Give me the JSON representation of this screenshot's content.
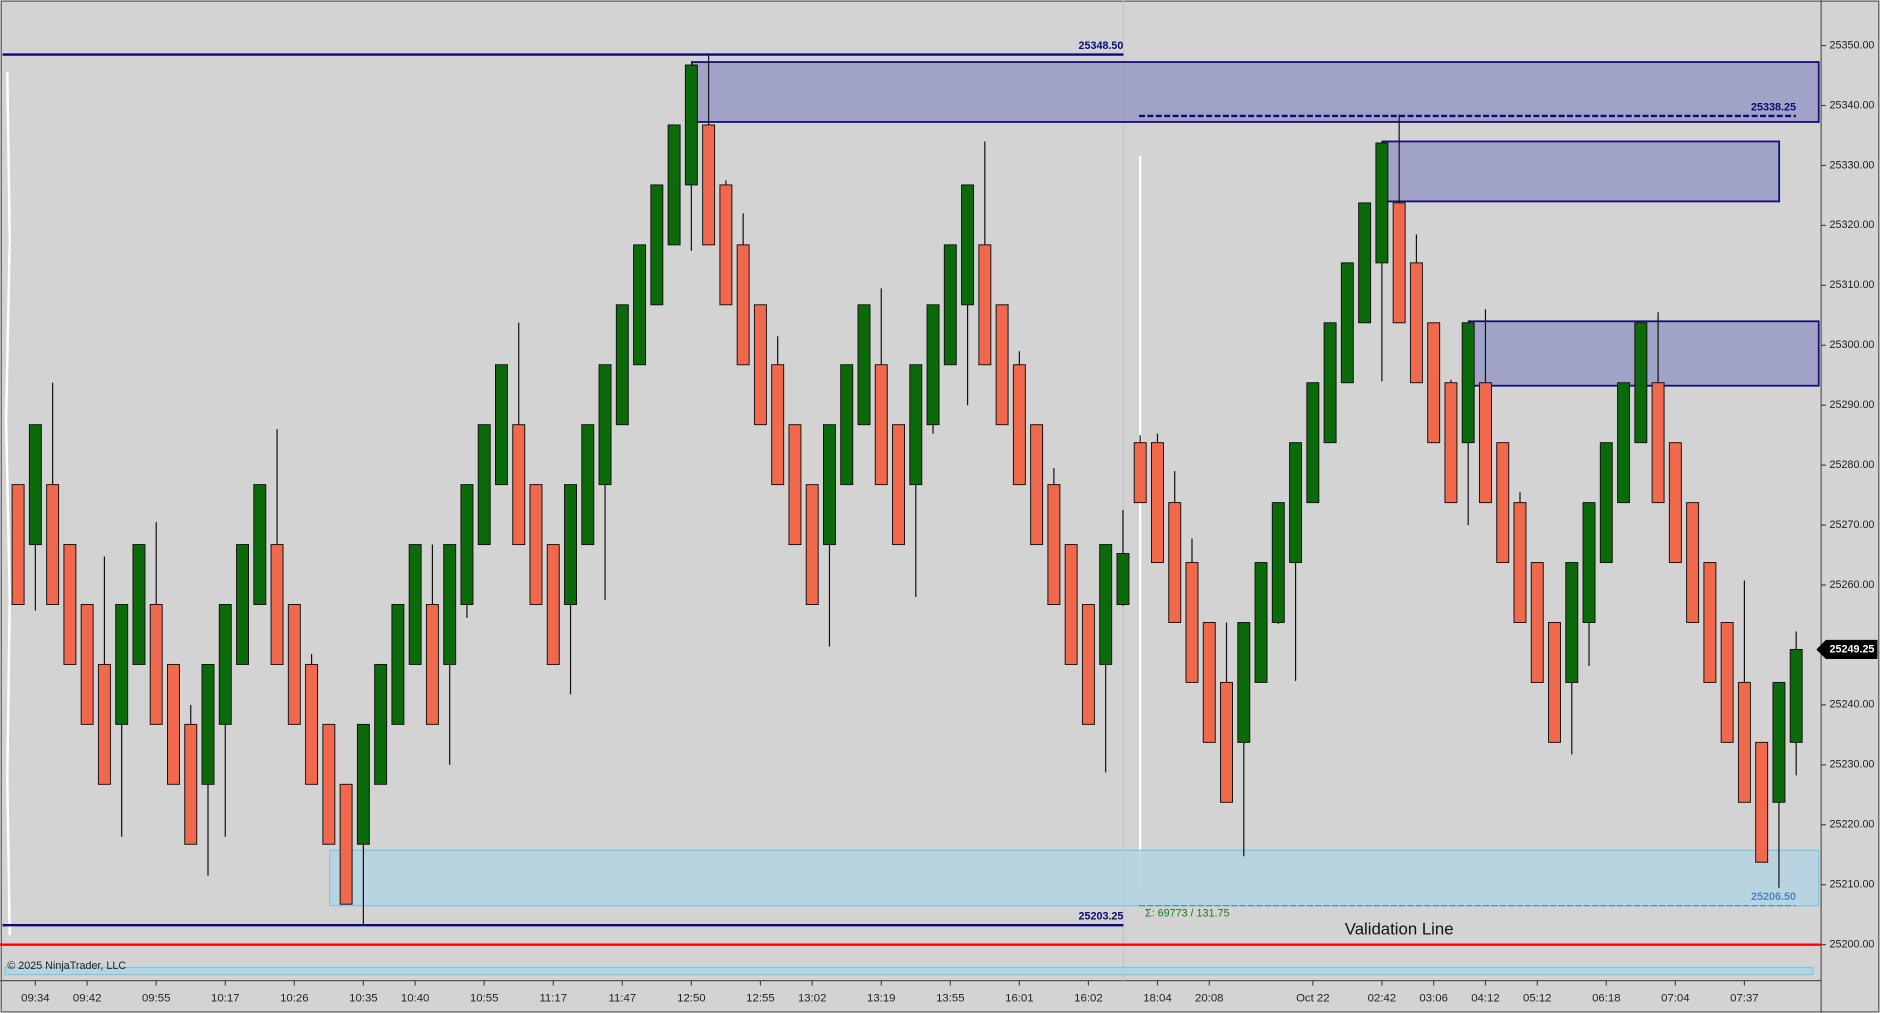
{
  "chart_data": {
    "type": "candlestick",
    "up_color": "#0b6b0b",
    "down_color": "#f0694c",
    "categories": [
      null,
      "09:34",
      null,
      null,
      "09:42",
      null,
      null,
      null,
      "09:55",
      null,
      null,
      null,
      "10:17",
      null,
      null,
      null,
      "10:26",
      null,
      null,
      null,
      "10:35",
      null,
      null,
      "10:40",
      null,
      null,
      null,
      "10:55",
      null,
      null,
      null,
      "11:17",
      null,
      null,
      null,
      "11:47",
      null,
      null,
      null,
      "12:50",
      null,
      null,
      null,
      "12:55",
      null,
      null,
      "13:02",
      null,
      null,
      null,
      "13:19",
      null,
      null,
      null,
      "13:55",
      null,
      null,
      null,
      "16:01",
      null,
      null,
      null,
      "16:02",
      null,
      null,
      null,
      "18:04",
      null,
      null,
      "20:08",
      null,
      null,
      null,
      null,
      null,
      "Oct 22",
      null,
      null,
      null,
      "02:42",
      null,
      null,
      "03:06",
      null,
      null,
      "04:12",
      null,
      null,
      "05:12",
      null,
      null,
      null,
      "06:18",
      null,
      null,
      null,
      "07:04",
      null,
      null,
      null,
      "07:37",
      null,
      null,
      null
    ],
    "open": [
      25276.75,
      25266.75,
      25276.75,
      25266.75,
      25256.75,
      25246.75,
      25236.75,
      25246.75,
      25256.75,
      25246.75,
      25236.75,
      25226.75,
      25236.75,
      25246.75,
      25256.75,
      25266.75,
      25256.75,
      25246.75,
      25236.75,
      25226.75,
      25216.75,
      25226.75,
      25236.75,
      25246.75,
      25256.75,
      25246.75,
      25256.75,
      25266.75,
      25276.75,
      25286.75,
      25276.75,
      25266.75,
      25256.75,
      25266.75,
      25276.75,
      25286.75,
      25296.75,
      25306.75,
      25316.75,
      25326.75,
      25336.75,
      25326.75,
      25316.75,
      25306.75,
      25296.75,
      25286.75,
      25276.75,
      25266.75,
      25276.75,
      25286.75,
      25296.75,
      25286.75,
      25276.75,
      25286.75,
      25296.75,
      25306.75,
      25316.75,
      25306.75,
      25296.75,
      25286.75,
      25276.75,
      25266.75,
      25256.75,
      25246.75,
      25256.75,
      25283.75,
      25283.75,
      25273.75,
      25263.75,
      25253.75,
      25243.75,
      25233.75,
      25243.75,
      25253.75,
      25263.75,
      25273.75,
      25283.75,
      25293.75,
      25303.75,
      25313.75,
      25323.75,
      25313.75,
      25303.75,
      25293.75,
      25283.75,
      25293.75,
      25283.75,
      25273.75,
      25263.75,
      25253.75,
      25243.75,
      25253.75,
      25263.75,
      25273.75,
      25283.75,
      25293.75,
      25283.75,
      25273.75,
      25263.75,
      25253.75,
      25243.75,
      25233.75,
      25223.75,
      25233.75
    ],
    "high": [
      25276.75,
      25286.75,
      25293.75,
      25266.75,
      25256.75,
      25264.75,
      25256.75,
      25266.75,
      25270.5,
      25246.75,
      25240,
      25246.75,
      25256.75,
      25266.75,
      25276.75,
      25286,
      25256.75,
      25248.5,
      25236.75,
      25226.75,
      25236.75,
      25246.75,
      25256.75,
      25266.75,
      25266.75,
      25266.75,
      25276.75,
      25286.75,
      25296.75,
      25303.75,
      25276.75,
      25266.75,
      25276.75,
      25286.75,
      25296.75,
      25306.75,
      25316.75,
      25326.75,
      25336.75,
      25346.75,
      25348.5,
      25327.5,
      25322,
      25306.75,
      25301.5,
      25286.75,
      25276.75,
      25286.75,
      25296.75,
      25306.75,
      25309.5,
      25286.75,
      25296.75,
      25306.75,
      25316.75,
      25326.75,
      25334,
      25306.75,
      25299,
      25286.75,
      25279.5,
      25266.75,
      25256.75,
      25266.75,
      25272.5,
      25285,
      25285.25,
      25279,
      25267.75,
      25253.75,
      25253.75,
      25253.75,
      25263.75,
      25273.75,
      25283.75,
      25293.75,
      25303.75,
      25313.75,
      25323.75,
      25333.75,
      25338.5,
      25318.5,
      25303.75,
      25294.25,
      25303.75,
      25306,
      25283.75,
      25275.5,
      25263.75,
      25253.75,
      25263.75,
      25273.75,
      25283.75,
      25293.75,
      25303.75,
      25305.5,
      25283.75,
      25273.75,
      25263.75,
      25253.75,
      25260.75,
      25233.75,
      25243.75,
      25252.25
    ],
    "low": [
      25256.75,
      25255.75,
      25256.75,
      25246.75,
      25236.75,
      25226.75,
      25218,
      25246.75,
      25236.75,
      25226.75,
      25216.75,
      25211.5,
      25218,
      25246.75,
      25256.75,
      25246.75,
      25236.75,
      25226.75,
      25216.75,
      25206.75,
      25203.25,
      25226.75,
      25236.75,
      25246.75,
      25236.75,
      25230,
      25254.5,
      25266.75,
      25276.75,
      25266.75,
      25256.75,
      25246.75,
      25241.75,
      25266.75,
      25257.5,
      25286.75,
      25296.75,
      25306.75,
      25316.75,
      25315.75,
      25316.75,
      25306.75,
      25296.75,
      25286.75,
      25276.75,
      25266.75,
      25256.75,
      25249.75,
      25276.75,
      25286.75,
      25276.75,
      25266.75,
      25258,
      25285.25,
      25296.75,
      25290,
      25296.75,
      25286.75,
      25276.75,
      25266.75,
      25256.75,
      25246.75,
      25236.75,
      25228.75,
      25256.5,
      25273.75,
      25263.75,
      25253.75,
      25243.75,
      25233.75,
      25223.75,
      25214.75,
      25243.75,
      25253.5,
      25244,
      25273.75,
      25283.75,
      25293.75,
      25303.75,
      25294,
      25303.75,
      25293.75,
      25283.75,
      25273.75,
      25270,
      25273.75,
      25263.75,
      25253.75,
      25243.75,
      25233.75,
      25231.75,
      25246.5,
      25263.75,
      25273.75,
      25283.75,
      25273.75,
      25263.75,
      25253.75,
      25243.75,
      25233.75,
      25223.75,
      25213.75,
      25209.5,
      25228.25
    ],
    "close": [
      25256.75,
      25286.75,
      25256.75,
      25246.75,
      25236.75,
      25226.75,
      25256.75,
      25266.75,
      25236.75,
      25226.75,
      25216.75,
      25246.75,
      25256.75,
      25266.75,
      25276.75,
      25246.75,
      25236.75,
      25226.75,
      25216.75,
      25206.75,
      25236.75,
      25246.75,
      25256.75,
      25266.75,
      25236.75,
      25266.75,
      25276.75,
      25286.75,
      25296.75,
      25266.75,
      25256.75,
      25246.75,
      25276.75,
      25286.75,
      25296.75,
      25306.75,
      25316.75,
      25326.75,
      25336.75,
      25346.75,
      25316.75,
      25306.75,
      25296.75,
      25286.75,
      25276.75,
      25266.75,
      25256.75,
      25286.75,
      25296.75,
      25306.75,
      25276.75,
      25266.75,
      25296.75,
      25306.75,
      25316.75,
      25326.75,
      25296.75,
      25286.75,
      25276.75,
      25266.75,
      25256.75,
      25246.75,
      25236.75,
      25266.75,
      25265.25,
      25273.75,
      25263.75,
      25253.75,
      25243.75,
      25233.75,
      25223.75,
      25253.75,
      25263.75,
      25273.75,
      25283.75,
      25293.75,
      25303.75,
      25313.75,
      25323.75,
      25333.75,
      25303.75,
      25293.75,
      25283.75,
      25273.75,
      25303.75,
      25273.75,
      25263.75,
      25253.75,
      25243.75,
      25233.75,
      25263.75,
      25273.75,
      25283.75,
      25293.75,
      25303.75,
      25273.75,
      25263.75,
      25253.75,
      25243.75,
      25233.75,
      25223.75,
      25213.75,
      25243.75,
      25249.25
    ],
    "ylim": [
      25194,
      25357.6
    ],
    "yticks": [
      {
        "value": 25350,
        "label": "25350.00"
      },
      {
        "value": 25340,
        "label": "25340.00"
      },
      {
        "value": 25330,
        "label": "25330.00"
      },
      {
        "value": 25320,
        "label": "25320.00"
      },
      {
        "value": 25310,
        "label": "25310.00"
      },
      {
        "value": 25300,
        "label": "25300.00"
      },
      {
        "value": 25290,
        "label": "25290.00"
      },
      {
        "value": 25280,
        "label": "25280.00"
      },
      {
        "value": 25270,
        "label": "25270.00"
      },
      {
        "value": 25260,
        "label": "25260.00"
      },
      {
        "value": 25250,
        "label": "25250.00"
      },
      {
        "value": 25240,
        "label": "25240.00"
      },
      {
        "value": 25230,
        "label": "25230.00"
      },
      {
        "value": 25220,
        "label": "25220.00"
      },
      {
        "value": 25210,
        "label": "25210.00"
      },
      {
        "value": 25200,
        "label": "25200.00"
      }
    ],
    "zones": [
      {
        "top": 25347.25,
        "bottom": 25337.25,
        "color": "#9a9cc4"
      },
      {
        "top": 25334,
        "bottom": 25324,
        "color": "#9a9cc4"
      },
      {
        "top": 25304,
        "bottom": 25293.25,
        "color": "#9a9cc4"
      },
      {
        "top": 25215.75,
        "bottom": 25206.5,
        "color": "#b3d4e3"
      }
    ],
    "levels": [
      {
        "value": 25348.5,
        "label": "25348.50",
        "color": "#0a0a7a",
        "dashed": false
      },
      {
        "value": 25203.25,
        "label": "25203.25",
        "color": "#0a0a7a",
        "dashed": false
      },
      {
        "value": 25338.25,
        "label": "25338.25",
        "color": "#0a0a7a",
        "dashed": true
      },
      {
        "value": 25206.5,
        "label": "25206.50",
        "color": "#4a86c0",
        "dashed": true
      }
    ],
    "validation_line": {
      "value": 25200,
      "label": "Validation Line",
      "color": "#ff0000"
    },
    "last_price": {
      "value": 25249.25,
      "label": "25249.25"
    },
    "sum_text": "Σ: 69773 / 131.75",
    "copyright": "© 2025 NinjaTrader, LLC"
  }
}
